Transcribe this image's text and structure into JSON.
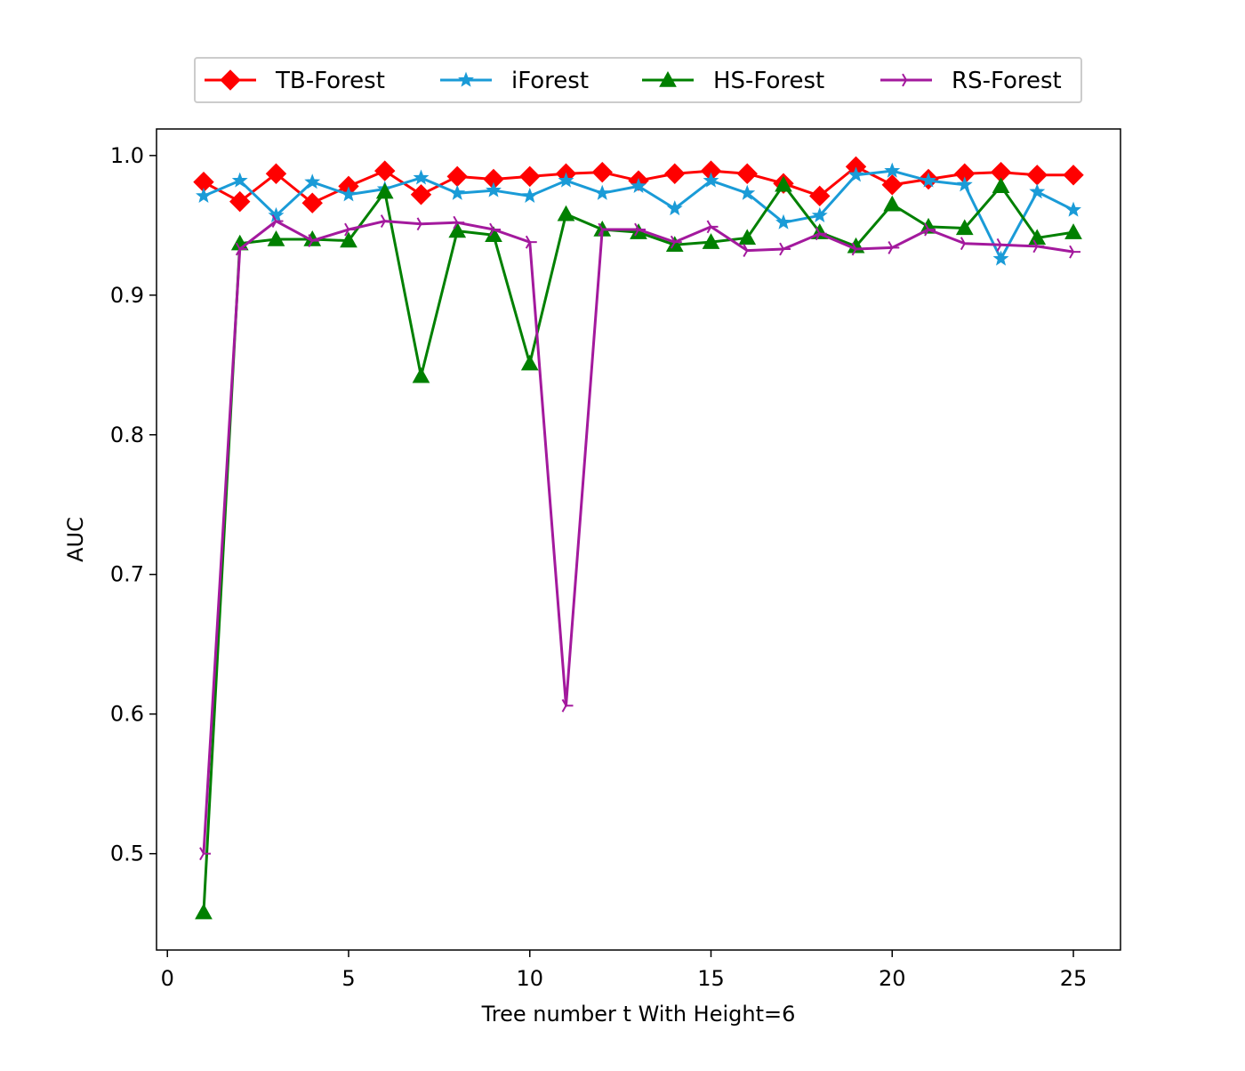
{
  "chart_data": {
    "type": "line",
    "title": "",
    "xlabel": "Tree number t With Height=6",
    "ylabel": "AUC",
    "xlim": [
      -0.3,
      26.3
    ],
    "ylim": [
      0.431,
      1.019
    ],
    "xticks": [
      0,
      5,
      10,
      15,
      20,
      25
    ],
    "yticks": [
      0.5,
      0.6,
      0.7,
      0.8,
      0.9,
      1.0
    ],
    "xtick_labels": [
      "0",
      "5",
      "10",
      "15",
      "20",
      "25"
    ],
    "ytick_labels": [
      "0.5",
      "0.6",
      "0.7",
      "0.8",
      "0.9",
      "1.0"
    ],
    "grid": false,
    "legend_position": "top-center",
    "x": [
      1,
      2,
      3,
      4,
      5,
      6,
      7,
      8,
      9,
      10,
      11,
      12,
      13,
      14,
      15,
      16,
      17,
      18,
      19,
      20,
      21,
      22,
      23,
      24,
      25
    ],
    "series": [
      {
        "name": "TB-Forest",
        "color": "#ff0000",
        "marker": "diamond",
        "values": [
          0.981,
          0.967,
          0.987,
          0.966,
          0.978,
          0.989,
          0.972,
          0.985,
          0.983,
          0.985,
          0.987,
          0.988,
          0.982,
          0.987,
          0.989,
          0.987,
          0.98,
          0.971,
          0.992,
          0.979,
          0.983,
          0.987,
          0.988,
          0.986,
          0.986
        ]
      },
      {
        "name": "iForest",
        "color": "#1a9bd7",
        "marker": "star",
        "values": [
          0.971,
          0.982,
          0.957,
          0.981,
          0.972,
          0.976,
          0.984,
          0.973,
          0.975,
          0.971,
          0.982,
          0.973,
          0.978,
          0.962,
          0.982,
          0.973,
          0.952,
          0.957,
          0.986,
          0.989,
          0.982,
          0.979,
          0.926,
          0.974,
          0.961
        ]
      },
      {
        "name": "HS-Forest",
        "color": "#008000",
        "marker": "triangle-up",
        "values": [
          0.458,
          0.937,
          0.94,
          0.94,
          0.939,
          0.974,
          0.842,
          0.946,
          0.943,
          0.851,
          0.958,
          0.947,
          0.945,
          0.936,
          0.938,
          0.941,
          0.979,
          0.945,
          0.935,
          0.965,
          0.949,
          0.948,
          0.978,
          0.941,
          0.945
        ]
      },
      {
        "name": "RS-Forest",
        "color": "#a3199d",
        "marker": "tri-right",
        "values": [
          0.5,
          0.933,
          0.953,
          0.939,
          0.947,
          0.953,
          0.951,
          0.952,
          0.947,
          0.938,
          0.606,
          0.947,
          0.947,
          0.938,
          0.949,
          0.932,
          0.933,
          0.944,
          0.933,
          0.934,
          0.947,
          0.937,
          0.936,
          0.935,
          0.931
        ]
      }
    ]
  }
}
